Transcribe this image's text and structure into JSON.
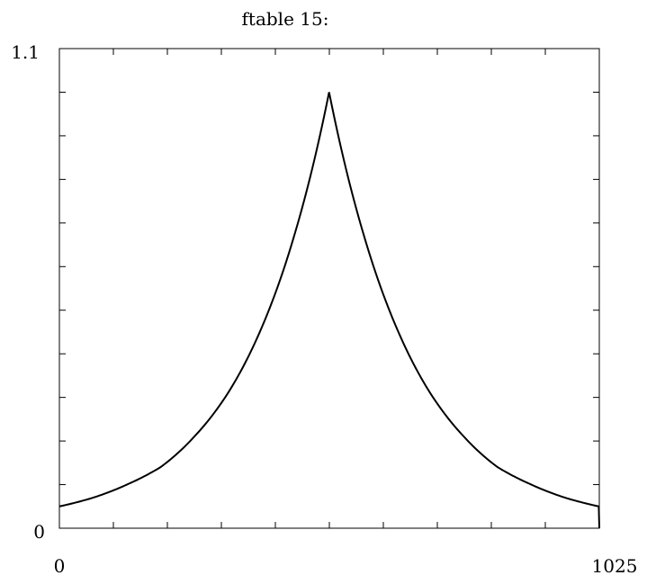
{
  "chart_data": {
    "type": "line",
    "title": "ftable 15:",
    "xlabel": "",
    "ylabel": "",
    "xlim": [
      0,
      1025
    ],
    "ylim": [
      0,
      1.1
    ],
    "x_tick_labels": [
      "0",
      "1025"
    ],
    "y_tick_labels": [
      "0",
      "1.1"
    ],
    "y_tick_values": [
      0,
      0.1,
      0.2,
      0.3,
      0.4,
      0.5,
      0.6,
      0.7,
      0.8,
      0.9,
      1.0,
      1.1
    ],
    "x_tick_count": 10,
    "grid": false,
    "line_color": "#000000",
    "series": [
      {
        "x": [
          0,
          64,
          128,
          192,
          256,
          320,
          384,
          448,
          512,
          576,
          640,
          704,
          768,
          832,
          896,
          960,
          1024,
          1025
        ],
        "values": [
          0.05,
          0.07,
          0.1,
          0.14,
          0.21,
          0.31,
          0.46,
          0.68,
          1.0,
          0.68,
          0.46,
          0.31,
          0.21,
          0.14,
          0.1,
          0.07,
          0.05,
          0.0
        ]
      }
    ]
  }
}
